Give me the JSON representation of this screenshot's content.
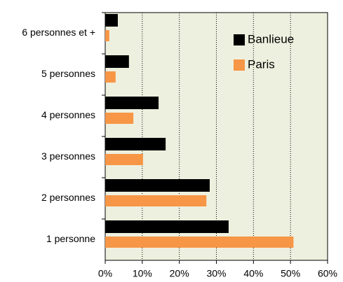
{
  "chart_data": {
    "type": "hbar",
    "categories": [
      "6 personnes et +",
      "5 personnes",
      "4 personnes",
      "3 personnes",
      "2 personnes",
      "1 personne"
    ],
    "series": [
      {
        "name": "Banlieue",
        "color": "#000000",
        "values": [
          3.4,
          6.4,
          14.4,
          16.3,
          28.2,
          33.3
        ]
      },
      {
        "name": "Paris",
        "color": "#f79646",
        "values": [
          1.1,
          2.8,
          7.6,
          10.2,
          27.3,
          50.8
        ]
      }
    ],
    "xlim": [
      0,
      60
    ],
    "xticks": [
      {
        "value": 0,
        "label": "0%"
      },
      {
        "value": 10,
        "label": "10%"
      },
      {
        "value": 20,
        "label": "20%"
      },
      {
        "value": 30,
        "label": "30%"
      },
      {
        "value": 40,
        "label": "40%"
      },
      {
        "value": 50,
        "label": "50%"
      },
      {
        "value": 60,
        "label": "60%"
      }
    ],
    "grid": true,
    "legend": "upper right",
    "background": "#eef0df"
  }
}
